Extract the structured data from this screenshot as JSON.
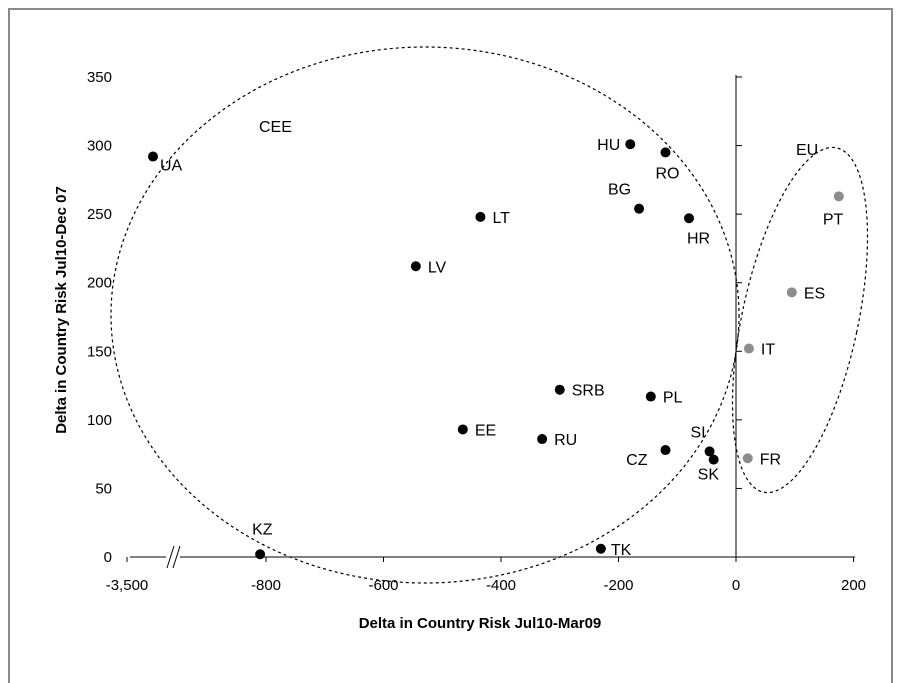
{
  "chart_data": {
    "type": "scatter",
    "xlabel": "Delta in Country Risk Jul10-Mar09",
    "ylabel": "Delta in Country Risk Jul10-Dec 07",
    "ylim": [
      0,
      350
    ],
    "xlim_break": true,
    "x_ticks": [
      "-3,500",
      "-800",
      "-600",
      "-400",
      "-200",
      "0",
      "200"
    ],
    "y_ticks": [
      "0",
      "50",
      "100",
      "150",
      "200",
      "250",
      "300",
      "350"
    ],
    "grid": false,
    "group_labels": [
      "CEE",
      "EU"
    ],
    "colors": {
      "cee": "#000000",
      "eu": "#8c8c8c"
    },
    "series": [
      {
        "group": "CEE",
        "points": [
          {
            "label": "UA",
            "x": -3500,
            "y": 292
          },
          {
            "label": "KZ",
            "x": -810,
            "y": 2
          },
          {
            "label": "LV",
            "x": -545,
            "y": 212
          },
          {
            "label": "LT",
            "x": -435,
            "y": 248
          },
          {
            "label": "EE",
            "x": -465,
            "y": 93
          },
          {
            "label": "RU",
            "x": -330,
            "y": 86
          },
          {
            "label": "SRB",
            "x": -300,
            "y": 122
          },
          {
            "label": "TK",
            "x": -230,
            "y": 6
          },
          {
            "label": "HU",
            "x": -180,
            "y": 301
          },
          {
            "label": "BG",
            "x": -165,
            "y": 254
          },
          {
            "label": "PL",
            "x": -145,
            "y": 117
          },
          {
            "label": "RO",
            "x": -120,
            "y": 295
          },
          {
            "label": "CZ",
            "x": -120,
            "y": 78
          },
          {
            "label": "HR",
            "x": -80,
            "y": 247
          },
          {
            "label": "SI",
            "x": -45,
            "y": 77
          },
          {
            "label": "SK",
            "x": -38,
            "y": 71
          }
        ]
      },
      {
        "group": "EU",
        "points": [
          {
            "label": "PT",
            "x": 175,
            "y": 263
          },
          {
            "label": "ES",
            "x": 95,
            "y": 193
          },
          {
            "label": "IT",
            "x": 22,
            "y": 152
          },
          {
            "label": "FR",
            "x": 20,
            "y": 72
          }
        ]
      }
    ]
  }
}
